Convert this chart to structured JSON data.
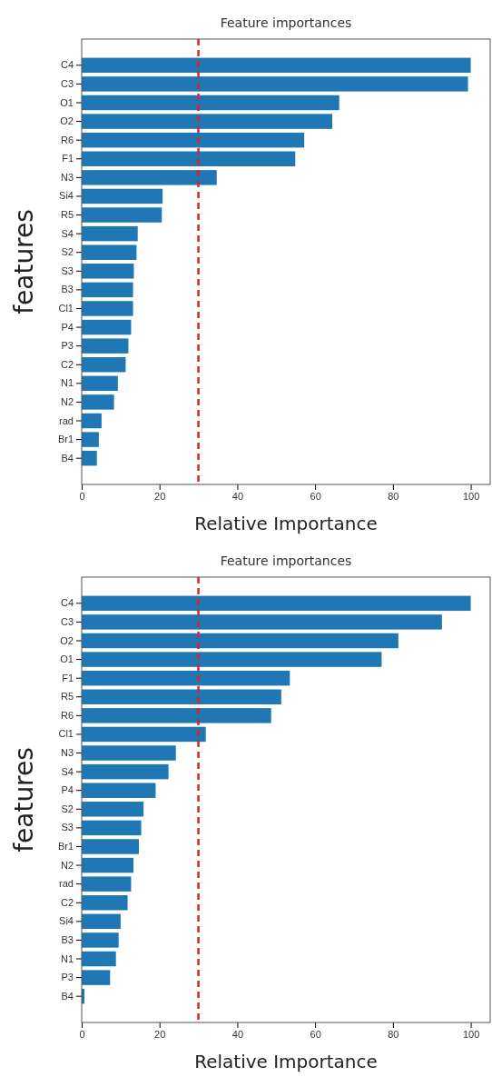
{
  "chart_data": [
    {
      "type": "bar",
      "orientation": "horizontal",
      "title": "Feature importances",
      "xlabel": "Relative Importance",
      "ylabel": "features",
      "categories": [
        "C4",
        "C3",
        "O1",
        "O2",
        "R6",
        "F1",
        "N3",
        "Si4",
        "R5",
        "S4",
        "S2",
        "S3",
        "B3",
        "Cl1",
        "P4",
        "P3",
        "C2",
        "N1",
        "N2",
        "rad",
        "Br1",
        "B4"
      ],
      "values": [
        100,
        99.3,
        66.2,
        64.4,
        57.2,
        54.9,
        34.7,
        20.8,
        20.6,
        14.4,
        14.1,
        13.4,
        13.2,
        13.2,
        12.7,
        12.0,
        11.3,
        9.3,
        8.3,
        5.1,
        4.4,
        3.9
      ],
      "color": "#1f77b4",
      "xlim": [
        0,
        105
      ],
      "xticks": [
        0,
        20,
        40,
        60,
        80,
        100
      ],
      "ref_lines": [
        {
          "axis": "x",
          "value": 30,
          "color": "#d62728",
          "line_style": "dashed"
        }
      ]
    },
    {
      "type": "bar",
      "orientation": "horizontal",
      "title": "Feature importances",
      "xlabel": "Relative Importance",
      "ylabel": "features",
      "categories": [
        "C4",
        "C3",
        "O2",
        "O1",
        "F1",
        "R5",
        "R6",
        "Cl1",
        "N3",
        "S4",
        "P4",
        "S2",
        "S3",
        "Br1",
        "N2",
        "rad",
        "C2",
        "Si4",
        "B3",
        "N1",
        "P3",
        "B4"
      ],
      "values": [
        100,
        92.6,
        81.4,
        77.1,
        53.5,
        51.3,
        48.7,
        31.9,
        24.2,
        22.3,
        19.0,
        15.9,
        15.3,
        14.7,
        13.3,
        12.7,
        11.8,
        10.0,
        9.5,
        8.8,
        7.3,
        0.7
      ],
      "color": "#1f77b4",
      "xlim": [
        0,
        105
      ],
      "xticks": [
        0,
        20,
        40,
        60,
        80,
        100
      ],
      "ref_lines": [
        {
          "axis": "x",
          "value": 30,
          "color": "#d62728",
          "line_style": "dashed"
        }
      ]
    }
  ]
}
